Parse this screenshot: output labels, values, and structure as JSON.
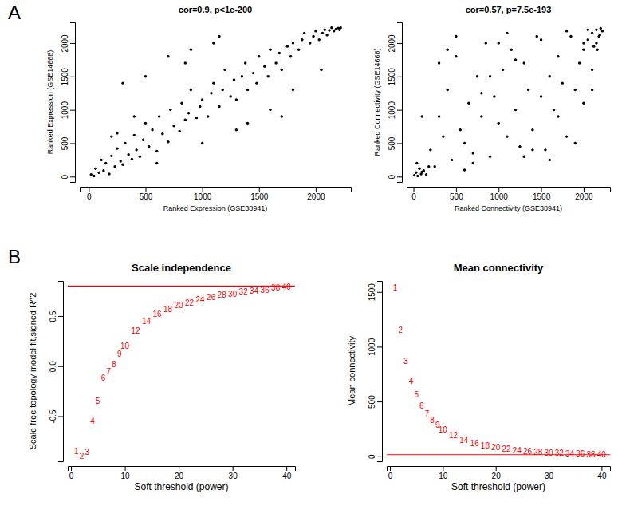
{
  "chart_data": [
    {
      "type": "scatter",
      "title": "cor=0.9, p<1e-200",
      "annotations": [
        "A"
      ],
      "x_label": "Ranked Expression (GSE38941)",
      "y_label": "Ranked Expression (GSE14668)",
      "marker": "circle",
      "color": "#000000",
      "grid": false,
      "xlim": [
        -80,
        2310
      ],
      "ylim": [
        -80,
        2310
      ],
      "xticks": [
        0,
        500,
        1000,
        1500,
        2000
      ],
      "yticks": [
        0,
        500,
        1000,
        1500,
        2000
      ],
      "x": [
        20,
        45,
        60,
        90,
        110,
        130,
        150,
        180,
        200,
        230,
        250,
        280,
        300,
        320,
        350,
        380,
        400,
        420,
        450,
        480,
        500,
        530,
        560,
        600,
        620,
        650,
        700,
        720,
        750,
        800,
        820,
        850,
        880,
        900,
        950,
        980,
        1000,
        1050,
        1080,
        1100,
        1150,
        1180,
        1200,
        1250,
        1280,
        1300,
        1350,
        1380,
        1400,
        1450,
        1480,
        1500,
        1550,
        1580,
        1600,
        1650,
        1680,
        1700,
        1750,
        1780,
        1800,
        1850,
        1880,
        1900,
        1950,
        1980,
        2000,
        2030,
        2060,
        2080,
        2100,
        2120,
        2140,
        2160,
        2180,
        2200,
        2210,
        2220,
        300,
        500,
        700,
        900,
        1100,
        400,
        1600,
        1300,
        200,
        600,
        1000,
        1400,
        1800,
        250,
        850,
        1150,
        1700,
        2050
      ],
      "values": [
        30,
        10,
        120,
        60,
        250,
        90,
        200,
        40,
        310,
        150,
        420,
        230,
        180,
        500,
        330,
        260,
        620,
        400,
        300,
        550,
        800,
        450,
        700,
        380,
        900,
        640,
        520,
        1000,
        760,
        680,
        1100,
        850,
        950,
        1300,
        880,
        1050,
        1150,
        900,
        1250,
        1400,
        1050,
        1300,
        1600,
        1200,
        1450,
        1150,
        1500,
        1700,
        1300,
        1550,
        1400,
        1800,
        1650,
        1500,
        1900,
        1700,
        1850,
        1600,
        1950,
        1800,
        2000,
        1900,
        2050,
        2150,
        2000,
        2100,
        2180,
        2050,
        2150,
        2200,
        2120,
        2190,
        2230,
        2180,
        2210,
        2225,
        2200,
        2230,
        1400,
        1500,
        1800,
        1900,
        2000,
        900,
        1000,
        700,
        600,
        200,
        500,
        800,
        1300,
        650,
        1700,
        2100,
        900,
        1600
      ]
    },
    {
      "type": "scatter",
      "title": "cor=0.57, p=7.5e-193",
      "x_label": "Ranked Connectivity (GSE38941)",
      "y_label": "Ranked Connectivity (GSE14668)",
      "marker": "circle",
      "color": "#000000",
      "grid": false,
      "xlim": [
        -80,
        2310
      ],
      "ylim": [
        -80,
        2310
      ],
      "xticks": [
        0,
        500,
        1000,
        1500,
        2000
      ],
      "yticks": [
        0,
        500,
        1000,
        1500,
        2000
      ],
      "x": [
        10,
        30,
        50,
        70,
        90,
        120,
        150,
        180,
        40,
        100,
        2100,
        2150,
        2180,
        2200,
        2220,
        2050,
        2120,
        2190,
        2000,
        2160,
        200,
        250,
        300,
        350,
        400,
        450,
        500,
        550,
        600,
        650,
        700,
        750,
        800,
        850,
        900,
        950,
        1000,
        1050,
        1100,
        1150,
        1200,
        1250,
        1300,
        1350,
        1400,
        1450,
        1500,
        1550,
        1600,
        1650,
        1700,
        1750,
        1800,
        1850,
        1900,
        1950,
        2000,
        2050,
        2100,
        2150,
        300,
        500,
        700,
        900,
        1100,
        1300,
        1500,
        1700,
        1900,
        2100,
        100,
        400,
        800,
        1200,
        1600,
        2000,
        600,
        1000,
        1400,
        1800
      ],
      "values": [
        20,
        60,
        10,
        120,
        40,
        90,
        30,
        150,
        200,
        70,
        2150,
        2200,
        2100,
        2220,
        2180,
        2050,
        1950,
        2120,
        2000,
        1900,
        400,
        150,
        900,
        600,
        1300,
        250,
        1800,
        700,
        500,
        1100,
        350,
        1500,
        900,
        2000,
        300,
        1200,
        800,
        1600,
        600,
        1900,
        1000,
        450,
        1700,
        1300,
        700,
        2100,
        1200,
        400,
        1500,
        1000,
        1800,
        1400,
        600,
        2100,
        1300,
        1700,
        1900,
        2200,
        1600,
        2000,
        1700,
        2100,
        200,
        1500,
        2150,
        300,
        2050,
        900,
        500,
        1300,
        900,
        1900,
        1250,
        1750,
        250,
        1100,
        100,
        2000,
        400,
        2180
      ]
    },
    {
      "type": "scatter",
      "title": "Scale independence",
      "annotations": [
        "B"
      ],
      "x_label": "Soft threshold (power)",
      "y_label": "Scale free topology model fit,signed R^2",
      "marker": "text",
      "color": "#ff0000",
      "grid": false,
      "xlim": [
        -0.6,
        41.6
      ],
      "ylim": [
        -0.95,
        0.85
      ],
      "xticks": [
        0,
        10,
        20,
        30,
        40
      ],
      "yticks": [
        -0.5,
        {
          "value": 0,
          "label": "0.0"
        },
        0.5
      ],
      "threshold_line": 0.8,
      "x": [
        1,
        2,
        3,
        4,
        5,
        6,
        7,
        8,
        9,
        10,
        12,
        14,
        16,
        18,
        20,
        22,
        24,
        26,
        28,
        30,
        32,
        34,
        36,
        38,
        40
      ],
      "values": [
        -0.85,
        -0.9,
        -0.86,
        -0.55,
        -0.35,
        -0.12,
        -0.05,
        0.02,
        0.12,
        0.2,
        0.35,
        0.45,
        0.52,
        0.57,
        0.61,
        0.63,
        0.66,
        0.69,
        0.71,
        0.72,
        0.74,
        0.75,
        0.76,
        0.78,
        0.79
      ]
    },
    {
      "type": "scatter",
      "title": "Mean connectivity",
      "x_label": "Soft threshold (power)",
      "y_label": "Mean connectivity",
      "marker": "text",
      "color": "#ff0000",
      "grid": false,
      "xlim": [
        -0.6,
        41.6
      ],
      "ylim": [
        -45,
        1600
      ],
      "xticks": [
        0,
        10,
        20,
        30,
        40
      ],
      "yticks": [
        0,
        500,
        1000,
        1500
      ],
      "threshold_line": 15,
      "x": [
        1,
        2,
        3,
        4,
        5,
        6,
        7,
        8,
        9,
        10,
        12,
        14,
        16,
        18,
        20,
        22,
        24,
        26,
        28,
        30,
        32,
        34,
        36,
        38,
        40
      ],
      "values": [
        1540,
        1150,
        870,
        690,
        560,
        460,
        390,
        330,
        285,
        245,
        190,
        150,
        120,
        95,
        80,
        65,
        55,
        45,
        38,
        32,
        28,
        24,
        21,
        18,
        16
      ]
    }
  ]
}
